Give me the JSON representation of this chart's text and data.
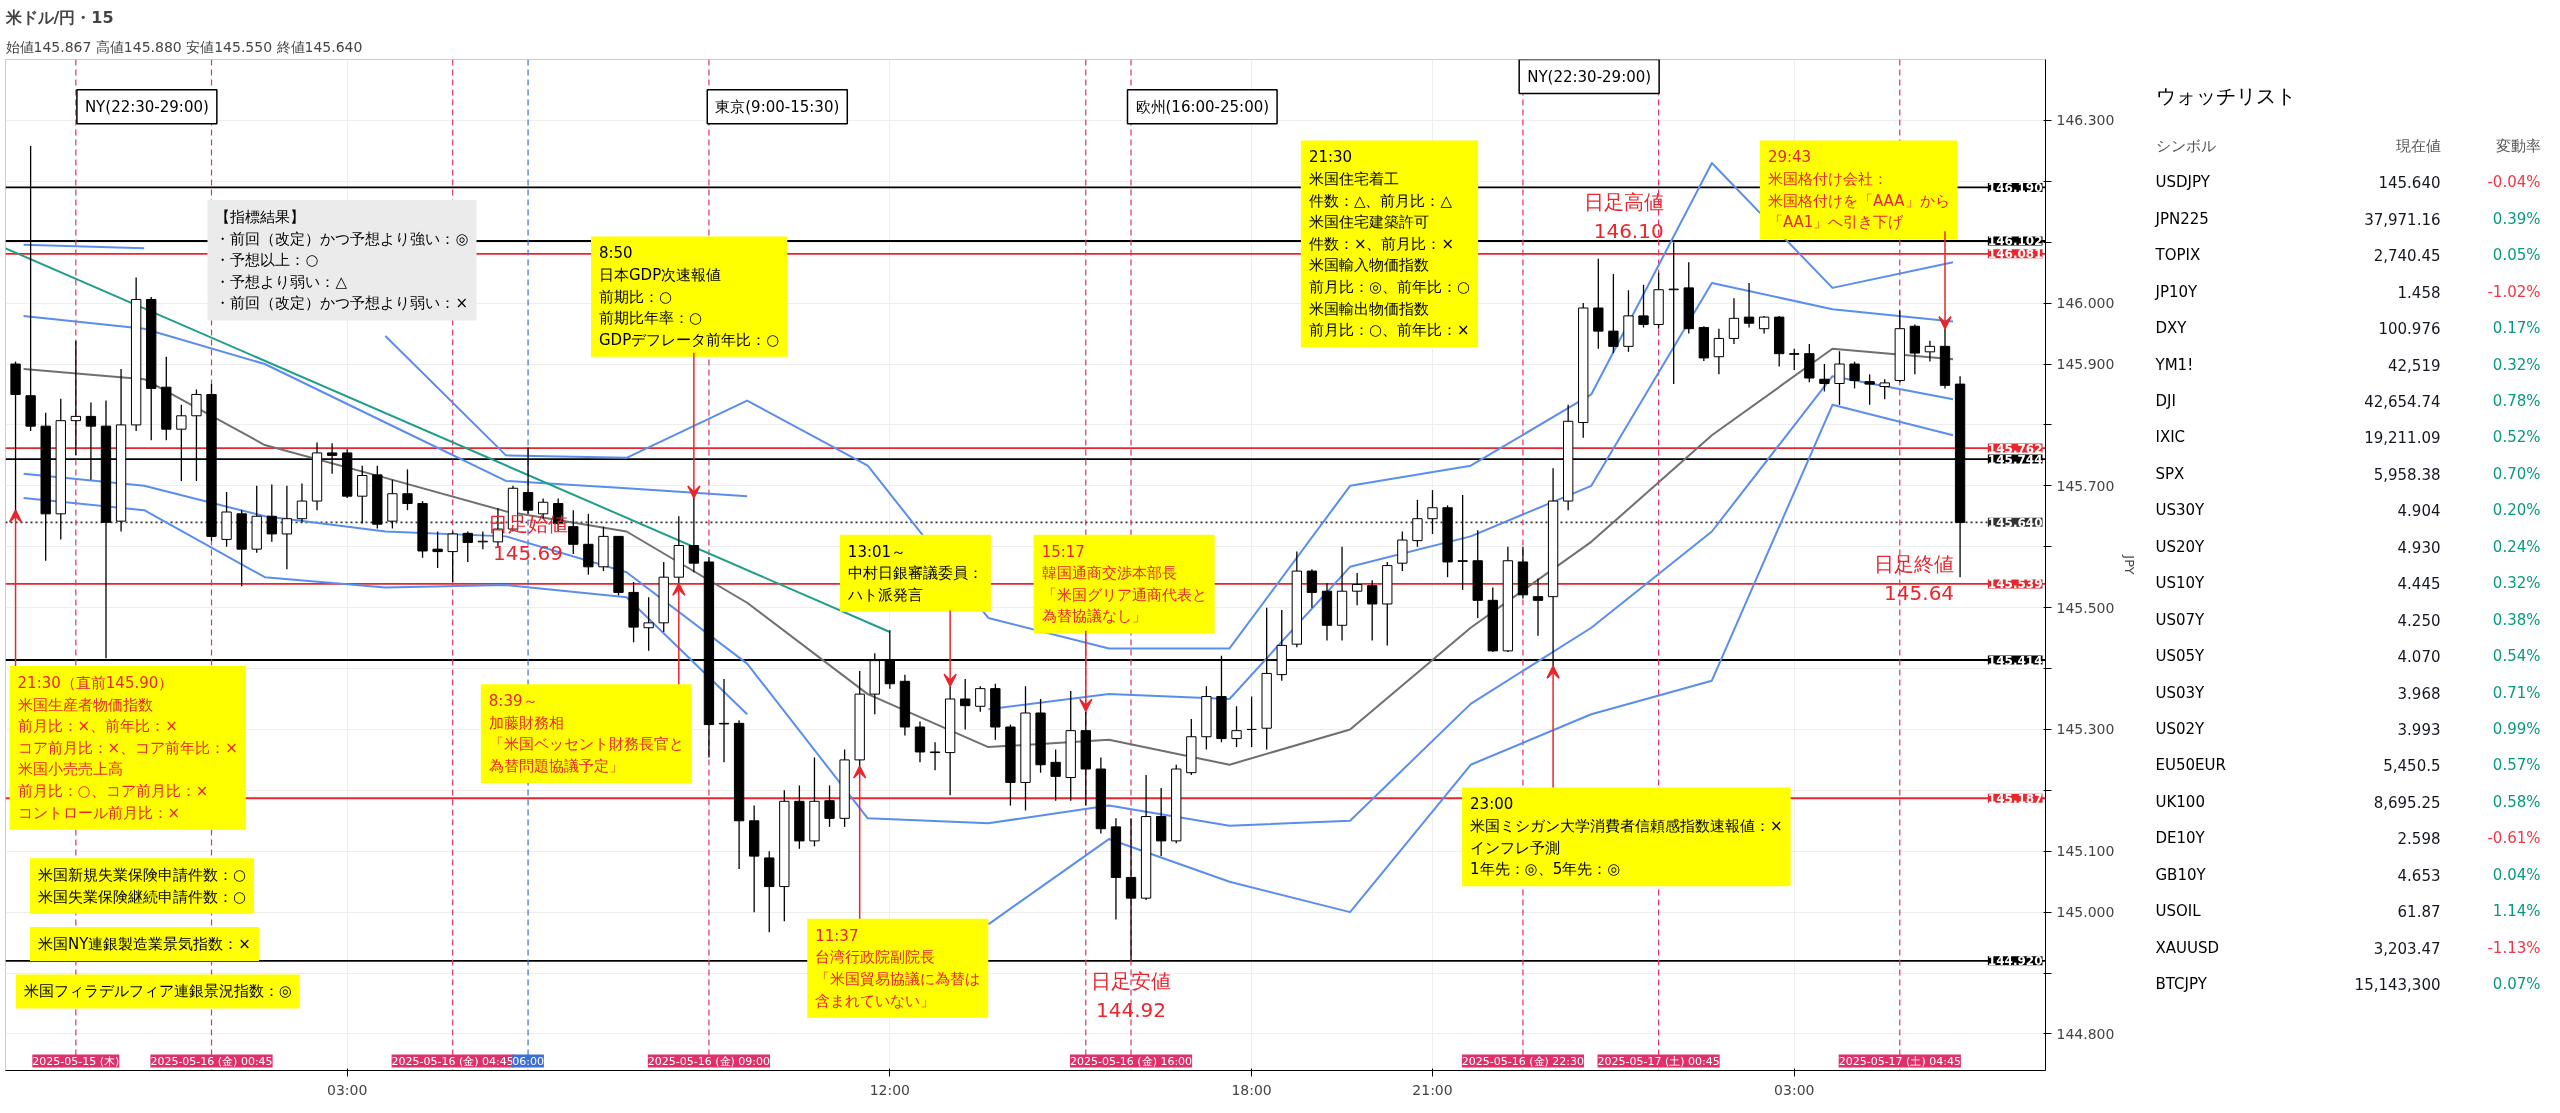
{
  "chart_data": [
    {
      "type": "candlestick",
      "title": "米ドル/円・15",
      "subtitle": "始値145.867 高値145.880 安値145.550 終値145.640",
      "ylabel": "JPY",
      "x": [
        "2025-05-15T21:30",
        "2025-05-15T21:45",
        "2025-05-15T22:00",
        "2025-05-15T22:15",
        "2025-05-15T22:30",
        "2025-05-15T22:45",
        "2025-05-15T23:00",
        "2025-05-15T23:15",
        "2025-05-15T23:30",
        "2025-05-15T23:45",
        "2025-05-16T00:00",
        "2025-05-16T00:15",
        "2025-05-16T00:30",
        "2025-05-16T00:45",
        "2025-05-16T01:00",
        "2025-05-16T01:15",
        "2025-05-16T01:30",
        "2025-05-16T01:45",
        "2025-05-16T02:00",
        "2025-05-16T02:15",
        "2025-05-16T02:30",
        "2025-05-16T02:45",
        "2025-05-16T03:00",
        "2025-05-16T03:15",
        "2025-05-16T03:30",
        "2025-05-16T03:45",
        "2025-05-16T04:00",
        "2025-05-16T04:15",
        "2025-05-16T04:30",
        "2025-05-16T04:45",
        "2025-05-16T05:00",
        "2025-05-16T05:15",
        "2025-05-16T05:30",
        "2025-05-16T05:45",
        "2025-05-16T06:00",
        "2025-05-16T06:15",
        "2025-05-16T06:30",
        "2025-05-16T06:45",
        "2025-05-16T07:00",
        "2025-05-16T07:15",
        "2025-05-16T07:30",
        "2025-05-16T07:45",
        "2025-05-16T08:00",
        "2025-05-16T08:15",
        "2025-05-16T08:30",
        "2025-05-16T08:45",
        "2025-05-16T09:00",
        "2025-05-16T09:15",
        "2025-05-16T09:30",
        "2025-05-16T09:45",
        "2025-05-16T10:00",
        "2025-05-16T10:15",
        "2025-05-16T10:30",
        "2025-05-16T10:45",
        "2025-05-16T11:00",
        "2025-05-16T11:15",
        "2025-05-16T11:30",
        "2025-05-16T11:45",
        "2025-05-16T12:00",
        "2025-05-16T12:15",
        "2025-05-16T12:30",
        "2025-05-16T12:45",
        "2025-05-16T13:00",
        "2025-05-16T13:15",
        "2025-05-16T13:30",
        "2025-05-16T13:45",
        "2025-05-16T14:00",
        "2025-05-16T14:15",
        "2025-05-16T14:30",
        "2025-05-16T14:45",
        "2025-05-16T15:00",
        "2025-05-16T15:15",
        "2025-05-16T15:30",
        "2025-05-16T15:45",
        "2025-05-16T16:00",
        "2025-05-16T16:15",
        "2025-05-16T16:30",
        "2025-05-16T16:45",
        "2025-05-16T17:00",
        "2025-05-16T17:15",
        "2025-05-16T17:30",
        "2025-05-16T17:45",
        "2025-05-16T18:00",
        "2025-05-16T18:15",
        "2025-05-16T18:30",
        "2025-05-16T18:45",
        "2025-05-16T19:00",
        "2025-05-16T19:15",
        "2025-05-16T19:30",
        "2025-05-16T19:45",
        "2025-05-16T20:00",
        "2025-05-16T20:15",
        "2025-05-16T20:30",
        "2025-05-16T20:45",
        "2025-05-16T21:00",
        "2025-05-16T21:15",
        "2025-05-16T21:30",
        "2025-05-16T21:45",
        "2025-05-16T22:00",
        "2025-05-16T22:15",
        "2025-05-16T22:30",
        "2025-05-16T22:45",
        "2025-05-16T23:00",
        "2025-05-16T23:15",
        "2025-05-16T23:30",
        "2025-05-16T23:45",
        "2025-05-17T00:00",
        "2025-05-17T00:15",
        "2025-05-17T00:30",
        "2025-05-17T00:45",
        "2025-05-17T01:00",
        "2025-05-17T01:15",
        "2025-05-17T01:30",
        "2025-05-17T01:45",
        "2025-05-17T02:00",
        "2025-05-17T02:15",
        "2025-05-17T02:30",
        "2025-05-17T02:45",
        "2025-05-17T03:00",
        "2025-05-17T03:15",
        "2025-05-17T03:30",
        "2025-05-17T03:45",
        "2025-05-17T04:00",
        "2025-05-17T04:15",
        "2025-05-17T04:30",
        "2025-05-17T04:45",
        "2025-05-17T05:00",
        "2025-05-17T05:15",
        "2025-05-17T05:30",
        "2025-05-17T05:45"
      ],
      "ohlc": [
        [
          145.9,
          145.904,
          145.658,
          145.85
        ],
        [
          145.848,
          146.258,
          145.79,
          145.798
        ],
        [
          145.798,
          145.82,
          145.577,
          145.654
        ],
        [
          145.654,
          145.843,
          145.612,
          145.807
        ],
        [
          145.807,
          145.938,
          145.75,
          145.814
        ],
        [
          145.814,
          145.837,
          145.71,
          145.798
        ],
        [
          145.798,
          145.84,
          145.417,
          145.64
        ],
        [
          145.642,
          145.892,
          145.625,
          145.8
        ],
        [
          145.8,
          146.042,
          145.79,
          146.006
        ],
        [
          146.006,
          146.01,
          145.775,
          145.86
        ],
        [
          145.862,
          145.912,
          145.775,
          145.793
        ],
        [
          145.793,
          145.833,
          145.708,
          145.815
        ],
        [
          145.815,
          145.858,
          145.708,
          145.85
        ],
        [
          145.85,
          145.867,
          145.61,
          145.617
        ],
        [
          145.612,
          145.69,
          145.6,
          145.657
        ],
        [
          145.654,
          145.66,
          145.535,
          145.596
        ],
        [
          145.596,
          145.7,
          145.59,
          145.65
        ],
        [
          145.65,
          145.702,
          145.608,
          145.621
        ],
        [
          145.621,
          145.7,
          145.563,
          145.646
        ],
        [
          145.646,
          145.704,
          145.64,
          145.675
        ],
        [
          145.675,
          145.771,
          145.66,
          145.754
        ],
        [
          145.754,
          145.77,
          145.72,
          145.75
        ],
        [
          145.754,
          145.76,
          145.68,
          145.683
        ],
        [
          145.683,
          145.733,
          145.638,
          145.717
        ],
        [
          145.718,
          145.733,
          145.63,
          145.637
        ],
        [
          145.642,
          145.71,
          145.63,
          145.687
        ],
        [
          145.687,
          145.727,
          145.66,
          145.671
        ],
        [
          145.671,
          145.675,
          145.582,
          145.593
        ],
        [
          145.596,
          145.625,
          145.565,
          145.592
        ],
        [
          145.592,
          145.625,
          145.542,
          145.621
        ],
        [
          145.622,
          145.625,
          145.575,
          145.607
        ],
        [
          145.608,
          145.625,
          145.596,
          145.609
        ],
        [
          145.608,
          145.663,
          145.6,
          145.629
        ],
        [
          145.629,
          145.7,
          145.625,
          145.696
        ],
        [
          145.689,
          145.763,
          145.654,
          145.66
        ],
        [
          145.654,
          145.679,
          145.646,
          145.673
        ],
        [
          145.671,
          145.679,
          145.625,
          145.638
        ],
        [
          145.633,
          145.66,
          145.588,
          145.604
        ],
        [
          145.604,
          145.654,
          145.554,
          145.567
        ],
        [
          145.567,
          145.633,
          145.56,
          145.617
        ],
        [
          145.617,
          145.617,
          145.52,
          145.525
        ],
        [
          145.525,
          145.542,
          145.443,
          145.468
        ],
        [
          145.467,
          145.517,
          145.429,
          145.475
        ],
        [
          145.475,
          145.575,
          145.46,
          145.55
        ],
        [
          145.55,
          145.65,
          145.54,
          145.602
        ],
        [
          145.602,
          145.683,
          145.558,
          145.573
        ],
        [
          145.575,
          145.583,
          145.254,
          145.308
        ],
        [
          145.309,
          145.383,
          145.246,
          145.31
        ],
        [
          145.31,
          145.315,
          145.071,
          145.15
        ],
        [
          145.15,
          145.175,
          145.0,
          145.092
        ],
        [
          145.089,
          145.1,
          144.967,
          145.042
        ],
        [
          145.042,
          145.2,
          144.985,
          145.182
        ],
        [
          145.182,
          145.208,
          145.104,
          145.117
        ],
        [
          145.117,
          145.254,
          145.108,
          145.182
        ],
        [
          145.183,
          145.208,
          145.14,
          145.154
        ],
        [
          145.154,
          145.267,
          145.14,
          145.25
        ],
        [
          145.25,
          145.396,
          145.24,
          145.358
        ],
        [
          145.358,
          145.425,
          145.325,
          145.413
        ],
        [
          145.413,
          145.463,
          145.367,
          145.375
        ],
        [
          145.379,
          145.39,
          145.29,
          145.304
        ],
        [
          145.304,
          145.313,
          145.246,
          145.263
        ],
        [
          145.263,
          145.279,
          145.233,
          145.262
        ],
        [
          145.262,
          145.371,
          145.192,
          145.35
        ],
        [
          145.35,
          145.383,
          145.3,
          145.339
        ],
        [
          145.338,
          145.371,
          145.329,
          145.367
        ],
        [
          145.367,
          145.375,
          145.283,
          145.304
        ],
        [
          145.304,
          145.308,
          145.175,
          145.213
        ],
        [
          145.213,
          145.371,
          145.167,
          145.327
        ],
        [
          145.327,
          145.35,
          145.229,
          145.242
        ],
        [
          145.246,
          145.267,
          145.183,
          145.223
        ],
        [
          145.221,
          145.363,
          145.183,
          145.298
        ],
        [
          145.298,
          145.329,
          145.175,
          145.235
        ],
        [
          145.235,
          145.254,
          145.129,
          145.137
        ],
        [
          145.14,
          145.154,
          144.988,
          145.057
        ],
        [
          145.057,
          145.154,
          144.921,
          145.023
        ],
        [
          145.023,
          145.225,
          145.02,
          145.157
        ],
        [
          145.157,
          145.204,
          145.092,
          145.117
        ],
        [
          145.117,
          145.242,
          145.113,
          145.235
        ],
        [
          145.229,
          145.317,
          145.225,
          145.288
        ],
        [
          145.288,
          145.371,
          145.267,
          145.354
        ],
        [
          145.354,
          145.421,
          145.279,
          145.285
        ],
        [
          145.285,
          145.338,
          145.271,
          145.298
        ],
        [
          145.3,
          145.354,
          145.271,
          145.3
        ],
        [
          145.302,
          145.5,
          145.267,
          145.392
        ],
        [
          145.39,
          145.496,
          145.38,
          145.438
        ],
        [
          145.44,
          145.592,
          145.435,
          145.56
        ],
        [
          145.56,
          145.563,
          145.5,
          145.525
        ],
        [
          145.527,
          145.54,
          145.446,
          145.471
        ],
        [
          145.471,
          145.6,
          145.446,
          145.527
        ],
        [
          145.527,
          145.557,
          145.504,
          145.538
        ],
        [
          145.536,
          145.545,
          145.446,
          145.506
        ],
        [
          145.506,
          145.575,
          145.438,
          145.569
        ],
        [
          145.573,
          145.625,
          145.56,
          145.611
        ],
        [
          145.61,
          145.677,
          145.6,
          145.646
        ],
        [
          145.646,
          145.693,
          145.621,
          145.664
        ],
        [
          145.664,
          145.668,
          145.55,
          145.575
        ],
        [
          145.577,
          145.685,
          145.529,
          145.576
        ],
        [
          145.577,
          145.627,
          145.483,
          145.512
        ],
        [
          145.512,
          145.533,
          145.427,
          145.429
        ],
        [
          145.429,
          145.6,
          145.427,
          145.577
        ],
        [
          145.575,
          145.6,
          145.515,
          145.521
        ],
        [
          145.518,
          145.548,
          145.454,
          145.512
        ],
        [
          145.518,
          145.729,
          145.404,
          145.675
        ],
        [
          145.675,
          145.833,
          145.66,
          145.806
        ],
        [
          145.804,
          146.0,
          145.779,
          145.992
        ],
        [
          145.992,
          146.073,
          145.925,
          145.954
        ],
        [
          145.954,
          146.048,
          145.918,
          145.929
        ],
        [
          145.929,
          146.021,
          145.92,
          145.979
        ],
        [
          145.979,
          146.03,
          145.96,
          145.965
        ],
        [
          145.965,
          146.05,
          145.958,
          146.022
        ],
        [
          146.022,
          146.1,
          145.867,
          146.023
        ],
        [
          146.025,
          146.067,
          145.95,
          145.958
        ],
        [
          145.96,
          145.962,
          145.905,
          145.91
        ],
        [
          145.912,
          145.958,
          145.883,
          145.942
        ],
        [
          145.942,
          146.008,
          145.933,
          145.975
        ],
        [
          145.977,
          146.033,
          145.96,
          145.967
        ],
        [
          145.958,
          145.979,
          145.95,
          145.977
        ],
        [
          145.977,
          145.979,
          145.896,
          145.917
        ],
        [
          145.917,
          145.925,
          145.89,
          145.916
        ],
        [
          145.917,
          145.933,
          145.87,
          145.877
        ],
        [
          145.875,
          145.9,
          145.855,
          145.868
        ],
        [
          145.868,
          145.921,
          145.833,
          145.9
        ],
        [
          145.9,
          145.904,
          145.86,
          145.873
        ],
        [
          145.871,
          145.883,
          145.833,
          145.867
        ],
        [
          145.863,
          145.875,
          145.842,
          145.869
        ],
        [
          145.873,
          145.988,
          145.87,
          145.958
        ],
        [
          145.962,
          145.965,
          145.883,
          145.918
        ],
        [
          145.92,
          145.938,
          145.904,
          145.929
        ],
        [
          145.929,
          145.958,
          145.86,
          145.865
        ],
        [
          145.867,
          145.88,
          145.55,
          145.64
        ]
      ],
      "series": [
        {
          "type": "line",
          "color": "#6f6f6f",
          "x": [
            "2025-05-15T21:38",
            "2025-05-15T23:38",
            "2025-05-16T01:38",
            "2025-05-16T03:38",
            "2025-05-16T05:38",
            "2025-05-16T07:38",
            "2025-05-16T09:38",
            "2025-05-16T11:38",
            "2025-05-16T13:38",
            "2025-05-16T15:38",
            "2025-05-16T17:38",
            "2025-05-16T19:38",
            "2025-05-16T21:38",
            "2025-05-16T23:38",
            "2025-05-17T01:38",
            "2025-05-17T03:38",
            "2025-05-17T05:38"
          ],
          "values": [
            145.892,
            145.875,
            145.767,
            145.713,
            145.658,
            145.625,
            145.508,
            145.358,
            145.271,
            145.283,
            145.242,
            145.3,
            145.467,
            145.608,
            145.783,
            145.925,
            145.908
          ]
        },
        {
          "type": "line",
          "color": "#5b8def",
          "x": [
            "2025-05-15T21:38",
            "2025-05-15T23:38",
            "2025-05-16T01:38",
            "2025-05-16T03:38",
            "2025-05-16T05:38",
            "2025-05-16T07:38",
            "2025-05-16T09:38",
            "2025-05-16T11:38",
            "2025-05-16T13:38",
            "2025-05-16T15:38",
            "2025-05-16T17:38",
            "2025-05-16T19:38",
            "2025-05-16T21:38",
            "2025-05-16T23:38",
            "2025-05-17T01:38",
            "2025-05-17T03:38",
            "2025-05-17T05:38"
          ],
          "values": [
            146.096,
            146.09,
            null,
            145.946,
            145.75,
            145.746,
            145.84,
            145.733,
            145.483,
            145.433,
            145.433,
            145.7,
            145.733,
            145.85,
            146.23,
            146.025,
            146.067
          ]
        },
        {
          "type": "line",
          "color": "#5b8def",
          "x": [
            "2025-05-15T21:38",
            "2025-05-15T23:38",
            "2025-05-16T01:38",
            "2025-05-16T03:38",
            "2025-05-16T05:38",
            "2025-05-16T07:38",
            "2025-05-16T09:38",
            "2025-05-16T11:38",
            "2025-05-16T13:38",
            "2025-05-16T15:38",
            "2025-05-16T17:38",
            "2025-05-16T19:38",
            "2025-05-16T21:38",
            "2025-05-16T23:38",
            "2025-05-17T01:38",
            "2025-05-17T03:38",
            "2025-05-17T05:38"
          ],
          "values": [
            145.979,
            145.958,
            145.9,
            145.804,
            145.708,
            145.696,
            145.683,
            null,
            145.333,
            145.358,
            145.35,
            145.567,
            145.617,
            145.7,
            146.033,
            145.99,
            145.97
          ]
        },
        {
          "type": "line",
          "color": "#5b8def",
          "x": [
            "2025-05-15T21:38",
            "2025-05-15T23:38",
            "2025-05-16T01:38",
            "2025-05-16T03:38",
            "2025-05-16T05:38",
            "2025-05-16T07:38",
            "2025-05-16T09:38",
            "2025-05-16T11:38",
            "2025-05-16T13:38",
            "2025-05-16T15:38",
            "2025-05-16T17:38",
            "2025-05-16T19:38",
            "2025-05-16T21:38",
            "2025-05-16T23:38",
            "2025-05-17T01:38",
            "2025-05-17T03:38",
            "2025-05-17T05:38"
          ],
          "values": [
            145.72,
            145.7,
            145.65,
            145.625,
            145.617,
            145.558,
            145.408,
            145.154,
            145.146,
            145.175,
            145.142,
            145.15,
            145.342,
            145.467,
            145.625,
            145.88,
            145.842
          ]
        },
        {
          "type": "line",
          "color": "#5b8def",
          "x": [
            "2025-05-15T21:38",
            "2025-05-15T23:38",
            "2025-05-16T01:38",
            "2025-05-16T03:38",
            "2025-05-16T05:38",
            "2025-05-16T07:38",
            "2025-05-16T09:38",
            "2025-05-16T11:38",
            "2025-05-16T13:38",
            "2025-05-16T15:38",
            "2025-05-16T17:38",
            "2025-05-16T19:38",
            "2025-05-16T21:38",
            "2025-05-16T23:38",
            "2025-05-17T01:38",
            "2025-05-17T03:38",
            "2025-05-17T05:38"
          ],
          "values": [
            145.68,
            145.66,
            145.55,
            145.533,
            145.537,
            145.517,
            145.325,
            null,
            144.98,
            145.12,
            145.05,
            145.0,
            145.242,
            145.325,
            145.38,
            145.833,
            145.783
          ]
        },
        {
          "type": "line",
          "color": "#1f9e89",
          "x": [
            "2025-05-15T21:20",
            "2025-05-16T12:00"
          ],
          "values": [
            146.09,
            145.46
          ]
        }
      ],
      "xlim": [
        "2025-05-15T21:20",
        "2025-05-17T07:10"
      ],
      "ylim": [
        144.74,
        146.4
      ],
      "xticks": [
        {
          "value": "2025-05-16T03:00",
          "label": "03:00"
        },
        {
          "value": "2025-05-16T12:00",
          "label": "12:00"
        },
        {
          "value": "2025-05-16T18:00",
          "label": "18:00"
        },
        {
          "value": "2025-05-16T21:00",
          "label": "21:00"
        },
        {
          "value": "2025-05-17T03:00",
          "label": "03:00"
        }
      ],
      "yticks": [
        {
          "value": 144.8,
          "label": "144.800"
        },
        {
          "value": 144.9,
          "label": null
        },
        {
          "value": 145.0,
          "label": "145.000"
        },
        {
          "value": 145.1,
          "label": "145.100"
        },
        {
          "value": 145.2,
          "label": null
        },
        {
          "value": 145.3,
          "label": "145.300"
        },
        {
          "value": 145.4,
          "label": null
        },
        {
          "value": 145.5,
          "label": "145.500"
        },
        {
          "value": 145.6,
          "label": null
        },
        {
          "value": 145.7,
          "label": "145.700"
        },
        {
          "value": 145.8,
          "label": null
        },
        {
          "value": 145.9,
          "label": "145.900"
        },
        {
          "value": 146.0,
          "label": "146.000"
        },
        {
          "value": 146.1,
          "label": null
        },
        {
          "value": 146.2,
          "label": null
        },
        {
          "value": 146.3,
          "label": "146.300"
        }
      ],
      "grid": true,
      "ref_lines": [
        {
          "axis": "y",
          "value": 146.19,
          "label": "146.190",
          "color": "#000000",
          "line_style": "solid"
        },
        {
          "axis": "y",
          "value": 146.102,
          "label": "146.102",
          "color": "#000000",
          "line_style": "solid"
        },
        {
          "axis": "y",
          "value": 146.081,
          "label": "146.081",
          "color": "#e8262d",
          "line_style": "solid"
        },
        {
          "axis": "y",
          "value": 145.762,
          "label": "145.762",
          "color": "#e8262d",
          "line_style": "solid"
        },
        {
          "axis": "y",
          "value": 145.744,
          "label": "145.744",
          "color": "#000000",
          "line_style": "solid"
        },
        {
          "axis": "y",
          "value": 145.64,
          "label": "145.640",
          "color": "#333333",
          "line_style": "dotted"
        },
        {
          "axis": "y",
          "value": 145.539,
          "label": "145.539",
          "color": "#e8262d",
          "line_style": "solid"
        },
        {
          "axis": "y",
          "value": 145.414,
          "label": "145.414",
          "color": "#000000",
          "line_style": "solid"
        },
        {
          "axis": "y",
          "value": 145.187,
          "label": "145.187",
          "color": "#e8262d",
          "line_style": "solid"
        },
        {
          "axis": "y",
          "value": 144.92,
          "label": "144.920",
          "color": "#000000",
          "line_style": "solid"
        },
        {
          "axis": "x",
          "value": "2025-05-15T22:30",
          "label": "2025-05-15 (木)",
          "color": "#e0306a",
          "line_style": "dashed"
        },
        {
          "axis": "x",
          "value": "2025-05-16T00:45",
          "label": "2025-05-16 (金) 00:45",
          "color": "#e0306a",
          "line_style": "dashed"
        },
        {
          "axis": "x",
          "value": "2025-05-16T04:45",
          "label": "2025-05-16 (金) 04:45",
          "color": "#e0306a",
          "line_style": "dashed"
        },
        {
          "axis": "x",
          "value": "2025-05-16T06:00",
          "label": "06:00",
          "color": "#3d6fd8",
          "line_style": "dashed"
        },
        {
          "axis": "x",
          "value": "2025-05-16T09:00",
          "label": "2025-05-16 (金) 09:00",
          "color": "#e0306a",
          "line_style": "dashed"
        },
        {
          "axis": "x",
          "value": "2025-05-16T15:15",
          "label": null,
          "color": "#e0306a",
          "line_style": "dashed"
        },
        {
          "axis": "x",
          "value": "2025-05-16T16:00",
          "label": "2025-05-16 (金) 16:00",
          "color": "#e0306a",
          "line_style": "dashed"
        },
        {
          "axis": "x",
          "value": "2025-05-16T22:30",
          "label": "2025-05-16 (金) 22:30",
          "color": "#e0306a",
          "line_style": "dashed"
        },
        {
          "axis": "x",
          "value": "2025-05-17T00:45",
          "label": "2025-05-17 (土) 00:45",
          "color": "#e0306a",
          "line_style": "dashed"
        },
        {
          "axis": "x",
          "value": "2025-05-17T04:45",
          "label": "2025-05-17 (土) 04:45",
          "color": "#e0306a",
          "line_style": "dashed"
        }
      ],
      "annotations": [
        "【指標結果】・前回（改定）かつ予想より強い：◎・予想以上：○・予想より弱い：△・前回（改定）かつ予想より弱い：×",
        {
          "text": "21:30（直前145.90）米国生産者物価指数前月比：×、前年比：×コア前月比：×、コア前年比：×米国小売売上高前月比：○、コア前月比：×コントロール前月比：×",
          "x": "2025-05-15T21:30",
          "y": 145.66
        },
        "米国新規失業保険申請件数：○米国失業保険継続申請件数：○",
        "米国NY連銀製造業景気指数：×",
        "米国フィラデルフィア連銀景況指数：◎",
        {
          "text": "8:39～加藤財務相「米国ベッセント財務長官と為替問題協議予定」",
          "x": "2025-05-16T08:30",
          "y": 145.54
        },
        {
          "text": "8:50日本GDP次速報値前期比：○前期比年率：○GDPデフレータ前年比：○",
          "x": "2025-05-16T08:45",
          "y": 145.68
        },
        {
          "text": "11:37台湾行政院副院長「米国貿易協議に為替は含まれていない」",
          "x": "2025-05-16T11:30",
          "y": 145.24
        },
        {
          "text": "13:01～中村日銀審議委員：ハト派発言",
          "x": "2025-05-16T13:00",
          "y": 145.371
        },
        {
          "text": "15:17韓国通商交渉本部長「米国グリア通商代表と為替協議なし」",
          "x": "2025-05-16T15:15",
          "y": 145.33
        },
        "21:30米国住宅着工件数：△、前月比：△米国住宅建築許可件数：×、前月比：×米国輸入物価指数前月比：◎、前年比：○米国輸出物価指数前月比：○、前年比：×",
        {
          "text": "23:00米国ミシガン大学消費者信頼感指数速報値：×インフレ予測1年先：◎、5年先：◎",
          "x": "2025-05-16T23:00",
          "y": 145.404
        },
        {
          "text": "29:43米国格付け会社：米国格付けを「AAA」から「AA1」へ引き下げ",
          "x": "2025-05-17T05:30",
          "y": 145.958
        },
        {
          "text": "日足始値145.69",
          "x": "2025-05-16T06:00",
          "y": 145.69
        },
        {
          "text": "日足安値144.92",
          "x": "2025-05-16T16:00",
          "y": 144.92
        },
        {
          "text": "日足高値146.10",
          "x": "2025-05-17T01:00",
          "y": 146.1
        },
        {
          "text": "日足終値145.64",
          "x": "2025-05-17T05:45",
          "y": 145.64
        },
        "NY(22:30-29:00)",
        "東京(9:00-15:30)",
        "欧州(16:00-25:00)",
        "NY(22:30-29:00)"
      ]
    },
    {
      "type": "other",
      "title": "ウォッチリスト",
      "xlabel": "シンボル",
      "categories": [
        "USDJPY",
        "JPN225",
        "TOPIX",
        "JP10Y",
        "DXY",
        "YM1!",
        "DJI",
        "IXIC",
        "SPX",
        "US30Y",
        "US20Y",
        "US10Y",
        "US07Y",
        "US05Y",
        "US03Y",
        "US02Y",
        "EU50EUR",
        "UK100",
        "DE10Y",
        "GB10Y",
        "USOIL",
        "XAUUSD",
        "BTCJPY"
      ],
      "series": [
        {
          "name": "現在値",
          "values": [
            145.64,
            37971.16,
            2740.45,
            1.458,
            100.976,
            42519,
            42654.74,
            19211.09,
            5958.38,
            4.904,
            4.93,
            4.445,
            4.25,
            4.07,
            3.968,
            3.993,
            5450.5,
            8695.25,
            2.598,
            4.653,
            61.87,
            3203.47,
            15143300
          ],
          "value_labels": [
            "145.640",
            "37,971.16",
            "2,740.45",
            "1.458",
            "100.976",
            "42,519",
            "42,654.74",
            "19,211.09",
            "5,958.38",
            "4.904",
            "4.930",
            "4.445",
            "4.250",
            "4.070",
            "3.968",
            "3.993",
            "5,450.5",
            "8,695.25",
            "2.598",
            "4.653",
            "61.87",
            "3,203.47",
            "15,143,300"
          ]
        },
        {
          "name": "変動率",
          "values": [
            -0.04,
            0.39,
            0.05,
            -1.02,
            0.17,
            0.32,
            0.78,
            0.52,
            0.7,
            0.2,
            0.24,
            0.32,
            0.38,
            0.54,
            0.71,
            0.99,
            0.57,
            0.58,
            -0.61,
            0.04,
            1.14,
            -1.13,
            0.07
          ],
          "value_labels": [
            "-0.04%",
            "0.39%",
            "0.05%",
            "-1.02%",
            "0.17%",
            "0.32%",
            "0.78%",
            "0.52%",
            "0.70%",
            "0.20%",
            "0.24%",
            "0.32%",
            "0.38%",
            "0.54%",
            "0.71%",
            "0.99%",
            "0.57%",
            "0.58%",
            "-0.61%",
            "0.04%",
            "1.14%",
            "-1.13%",
            "0.07%"
          ]
        }
      ]
    }
  ]
}
